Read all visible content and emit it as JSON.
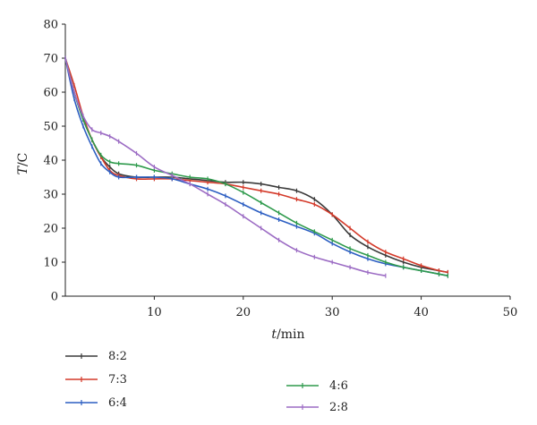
{
  "chart_data": {
    "type": "line",
    "title": "",
    "xlabel": {
      "var": "t",
      "unit": "/min"
    },
    "ylabel": {
      "var": "T",
      "unit": "/C"
    },
    "xlim": [
      0,
      50
    ],
    "ylim": [
      0,
      80
    ],
    "xticks": [
      10,
      20,
      30,
      40,
      50
    ],
    "yticks": [
      0,
      10,
      20,
      30,
      40,
      50,
      60,
      70,
      80
    ],
    "grid": false,
    "legend_position": "bottom",
    "series": [
      {
        "name": "8:2",
        "color": "#3a3a3a",
        "x": [
          0,
          1,
          2,
          3,
          4,
          5,
          6,
          8,
          10,
          12,
          14,
          16,
          18,
          20,
          22,
          24,
          26,
          28,
          30,
          32,
          34,
          36,
          38,
          40,
          42,
          43
        ],
        "y": [
          70,
          60,
          52,
          46,
          41,
          38,
          36,
          35,
          35,
          35,
          34.5,
          34,
          33.5,
          33.5,
          33,
          32,
          31,
          28.5,
          24,
          18,
          14.5,
          12,
          10,
          8.5,
          7.5,
          7
        ]
      },
      {
        "name": "7:3",
        "color": "#d43a2a",
        "x": [
          0,
          1,
          2,
          3,
          4,
          5,
          6,
          8,
          10,
          12,
          14,
          16,
          18,
          20,
          22,
          24,
          26,
          28,
          30,
          32,
          34,
          36,
          38,
          40,
          42,
          43
        ],
        "y": [
          70,
          62,
          53,
          46,
          41,
          37,
          35.5,
          34.5,
          34.5,
          34.5,
          34,
          33.5,
          33,
          32,
          31,
          30,
          28.5,
          27,
          24,
          20,
          16,
          13,
          11,
          9,
          7.5,
          7
        ]
      },
      {
        "name": "6:4",
        "color": "#2c5ec2",
        "x": [
          0,
          1,
          2,
          3,
          4,
          5,
          6,
          8,
          10,
          12,
          14,
          16,
          18,
          20,
          22,
          24,
          26,
          28,
          30,
          32,
          34,
          36,
          38,
          40,
          42,
          43
        ],
        "y": [
          70,
          58,
          50,
          44,
          39,
          36.5,
          35,
          35,
          35,
          34.5,
          33,
          31.5,
          29.5,
          27,
          24.5,
          22.5,
          20.5,
          18.5,
          15.5,
          13,
          11,
          9.5,
          8.5,
          7.5,
          6.5,
          6
        ]
      },
      {
        "name": "4:6",
        "color": "#2e9a4c",
        "x": [
          0,
          1,
          2,
          3,
          4,
          5,
          6,
          8,
          10,
          12,
          14,
          16,
          18,
          20,
          22,
          24,
          26,
          28,
          30,
          32,
          34,
          36,
          38,
          40,
          42,
          43
        ],
        "y": [
          70,
          60,
          52,
          46,
          41.5,
          39.5,
          39,
          38.5,
          37,
          36,
          35,
          34.5,
          33,
          30.5,
          27.5,
          24.5,
          21.5,
          19,
          16.5,
          14,
          12,
          10,
          8.5,
          7.5,
          6.5,
          6
        ]
      },
      {
        "name": "2:8",
        "color": "#9c6cc4",
        "x": [
          0,
          1,
          2,
          3,
          4,
          5,
          6,
          8,
          10,
          12,
          14,
          16,
          18,
          20,
          22,
          24,
          26,
          28,
          30,
          32,
          34,
          36
        ],
        "y": [
          70,
          60,
          53,
          49,
          48,
          47,
          45.5,
          42,
          38,
          35.5,
          33,
          30,
          27,
          23.5,
          20,
          16.5,
          13.5,
          11.5,
          10,
          8.5,
          7,
          6
        ]
      }
    ]
  }
}
